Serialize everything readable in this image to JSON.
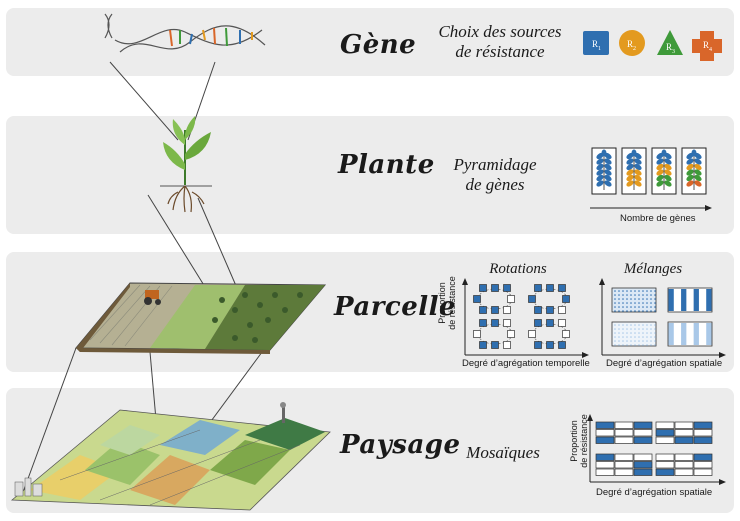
{
  "levels": [
    {
      "title": "Gène",
      "description": "Choix des sources de résistance",
      "desc_line1": "Choix des sources",
      "desc_line2": "de résistance"
    },
    {
      "title": "Plante",
      "description": "Pyramidage de gènes",
      "desc_line1": "Pyramidage",
      "desc_line2": "de gènes"
    },
    {
      "title": "Parcelle",
      "description": "",
      "desc_line1": "",
      "desc_line2": ""
    },
    {
      "title": "Paysage",
      "description": "Mosaïques",
      "desc_line1": "Mosaïques",
      "desc_line2": ""
    }
  ],
  "genes": {
    "items": [
      {
        "label": "R1",
        "base": "R",
        "sub": "1",
        "shape": "square",
        "color": "#2f6fb0"
      },
      {
        "label": "R2",
        "base": "R",
        "sub": "2",
        "shape": "circle",
        "color": "#e39a1f"
      },
      {
        "label": "R3",
        "base": "R",
        "sub": "3",
        "shape": "triangle",
        "color": "#3f9a3a"
      },
      {
        "label": "R4",
        "base": "R",
        "sub": "4",
        "shape": "cross",
        "color": "#d9662a"
      }
    ]
  },
  "plante": {
    "axis_label": "Nombre de gènes",
    "cards": [
      {
        "colors": [
          "#2f6fb0"
        ]
      },
      {
        "colors": [
          "#2f6fb0",
          "#e39a1f"
        ]
      },
      {
        "colors": [
          "#2f6fb0",
          "#e39a1f",
          "#3f9a3a"
        ]
      },
      {
        "colors": [
          "#2f6fb0",
          "#e39a1f",
          "#3f9a3a",
          "#d9662a"
        ]
      }
    ]
  },
  "parcelle": {
    "rotations_title": "Rotations",
    "melanges_title": "Mélanges",
    "y_label_line1": "Proportion",
    "y_label_line2": "de résistance",
    "x_label_temporal": "Degré d’agrégation temporelle",
    "x_label_spatial": "Degré d’agrégation spatiale"
  },
  "paysage": {
    "y_label_line1": "Proportion",
    "y_label_line2": "de résistance",
    "x_label": "Degré d’agrégation spatiale"
  },
  "colors": {
    "band": "#ececec",
    "resistant_blue": "#2f6fb0",
    "light_blue": "#a9c8e8"
  }
}
